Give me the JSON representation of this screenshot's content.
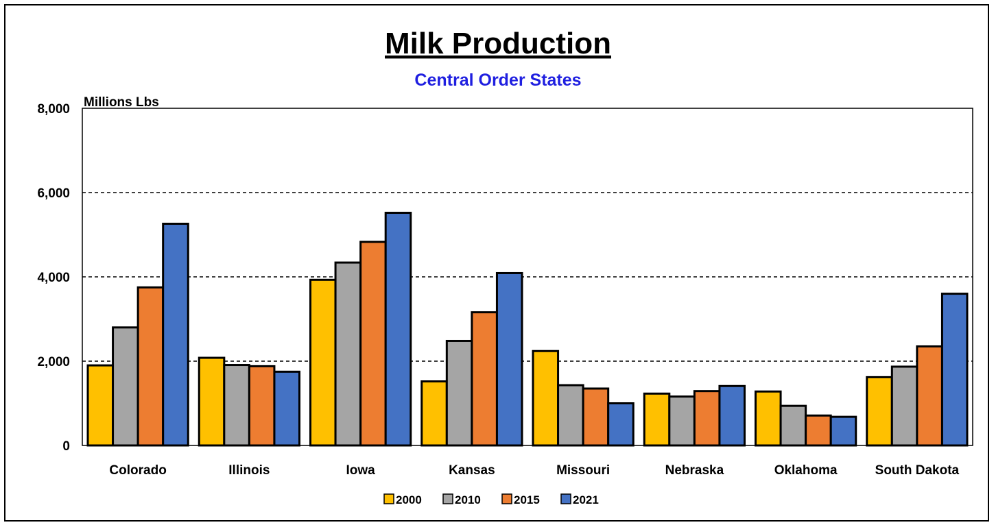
{
  "chart_data": {
    "type": "bar",
    "title": "Milk Production",
    "subtitle": "Central Order States",
    "ylabel": "Millions Lbs",
    "xlabel": "",
    "ylim": [
      0,
      8000
    ],
    "yticks": [
      0,
      2000,
      4000,
      6000,
      8000
    ],
    "ytick_labels": [
      "0",
      "2,000",
      "4,000",
      "6,000",
      "8,000"
    ],
    "grid": "horizontal dashed",
    "legend_position": "bottom",
    "categories": [
      "Colorado",
      "Illinois",
      "Iowa",
      "Kansas",
      "Missouri",
      "Nebraska",
      "Oklahoma",
      "South Dakota"
    ],
    "series": [
      {
        "name": "2000",
        "color": "#ffc000",
        "values": [
          1900,
          2080,
          3930,
          1520,
          2240,
          1230,
          1280,
          1620
        ]
      },
      {
        "name": "2010",
        "color": "#a5a5a5",
        "values": [
          2800,
          1910,
          4340,
          2480,
          1430,
          1160,
          940,
          1870
        ]
      },
      {
        "name": "2015",
        "color": "#ed7d31",
        "values": [
          3750,
          1880,
          4830,
          3160,
          1350,
          1290,
          710,
          2350
        ]
      },
      {
        "name": "2021",
        "color": "#4472c4",
        "values": [
          5260,
          1750,
          5520,
          4090,
          1000,
          1410,
          680,
          3600
        ]
      }
    ],
    "subtitle_color": "#1f1fe0"
  }
}
